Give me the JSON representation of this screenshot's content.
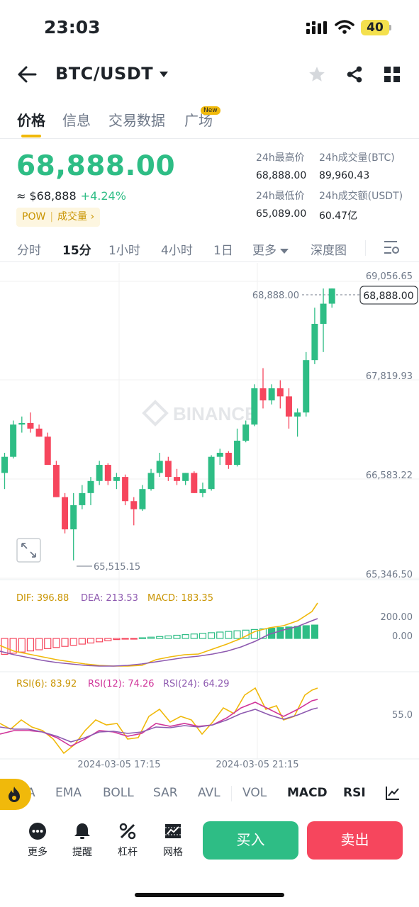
{
  "status_bar": {
    "time": "23:03",
    "battery": "40"
  },
  "header": {
    "pair": "BTC/USDT"
  },
  "tabs": [
    {
      "label": "价格",
      "active": true
    },
    {
      "label": "信息",
      "active": false
    },
    {
      "label": "交易数据",
      "active": false
    },
    {
      "label": "广场",
      "active": false,
      "badge": "New"
    }
  ],
  "price": {
    "last": "68,888.00",
    "approx": "≈ $68,888",
    "change": "+4.24%",
    "tag_left": "POW",
    "tag_right": "成交量 ›"
  },
  "stats": {
    "high_label": "24h最高价",
    "high_value": "68,888.00",
    "vol_btc_label": "24h成交量(BTC)",
    "vol_btc_value": "89,960.43",
    "low_label": "24h最低价",
    "low_value": "65,089.00",
    "vol_usdt_label": "24h成交额(USDT)",
    "vol_usdt_value": "60.47亿"
  },
  "intervals": [
    "分时",
    "15分",
    "1小时",
    "4小时",
    "1日",
    "更多",
    "深度图"
  ],
  "interval_active": "15分",
  "chart_data": {
    "type": "candlestick",
    "y_ticks": [
      "69,056.65",
      "67,819.93",
      "66,583.22",
      "65,346.50"
    ],
    "last_price_label": "68,888.00",
    "min_label": "65,515.15",
    "watermark": "BINANCE",
    "time_labels": [
      "2024-03-05 17:15",
      "2024-03-05 21:15"
    ],
    "candles": [
      {
        "o": 66600,
        "h": 66850,
        "l": 66400,
        "c": 66800
      },
      {
        "o": 66800,
        "h": 67250,
        "l": 66780,
        "c": 67200
      },
      {
        "o": 67200,
        "h": 67300,
        "l": 67100,
        "c": 67220
      },
      {
        "o": 67220,
        "h": 67350,
        "l": 67100,
        "c": 67150
      },
      {
        "o": 67150,
        "h": 67200,
        "l": 67050,
        "c": 67050
      },
      {
        "o": 67050,
        "h": 67100,
        "l": 66700,
        "c": 66700
      },
      {
        "o": 66700,
        "h": 66750,
        "l": 66300,
        "c": 66300
      },
      {
        "o": 66300,
        "h": 66350,
        "l": 65850,
        "c": 65900
      },
      {
        "o": 65900,
        "h": 66350,
        "l": 65515,
        "c": 66200
      },
      {
        "o": 66200,
        "h": 66450,
        "l": 66150,
        "c": 66350
      },
      {
        "o": 66350,
        "h": 66550,
        "l": 66200,
        "c": 66500
      },
      {
        "o": 66500,
        "h": 66750,
        "l": 66450,
        "c": 66700
      },
      {
        "o": 66700,
        "h": 66720,
        "l": 66450,
        "c": 66500
      },
      {
        "o": 66500,
        "h": 66600,
        "l": 66400,
        "c": 66550
      },
      {
        "o": 66550,
        "h": 66580,
        "l": 66200,
        "c": 66250
      },
      {
        "o": 66250,
        "h": 66300,
        "l": 65950,
        "c": 66150
      },
      {
        "o": 66150,
        "h": 66450,
        "l": 66130,
        "c": 66400
      },
      {
        "o": 66400,
        "h": 66650,
        "l": 66380,
        "c": 66600
      },
      {
        "o": 66600,
        "h": 66850,
        "l": 66550,
        "c": 66750
      },
      {
        "o": 66750,
        "h": 66800,
        "l": 66500,
        "c": 66550
      },
      {
        "o": 66550,
        "h": 66650,
        "l": 66450,
        "c": 66500
      },
      {
        "o": 66500,
        "h": 66600,
        "l": 66450,
        "c": 66600
      },
      {
        "o": 66600,
        "h": 66620,
        "l": 66350,
        "c": 66350
      },
      {
        "o": 66350,
        "h": 66480,
        "l": 66300,
        "c": 66400
      },
      {
        "o": 66400,
        "h": 66820,
        "l": 66380,
        "c": 66800
      },
      {
        "o": 66800,
        "h": 66900,
        "l": 66700,
        "c": 66850
      },
      {
        "o": 66850,
        "h": 66870,
        "l": 66650,
        "c": 66700
      },
      {
        "o": 66700,
        "h": 67150,
        "l": 66680,
        "c": 67000
      },
      {
        "o": 67000,
        "h": 67250,
        "l": 66980,
        "c": 67200
      },
      {
        "o": 67200,
        "h": 67700,
        "l": 67180,
        "c": 67650
      },
      {
        "o": 67650,
        "h": 67900,
        "l": 67400,
        "c": 67500
      },
      {
        "o": 67500,
        "h": 67700,
        "l": 67450,
        "c": 67650
      },
      {
        "o": 67650,
        "h": 67750,
        "l": 67400,
        "c": 67550
      },
      {
        "o": 67550,
        "h": 67650,
        "l": 67150,
        "c": 67300
      },
      {
        "o": 67300,
        "h": 67400,
        "l": 67050,
        "c": 67350
      },
      {
        "o": 67350,
        "h": 68100,
        "l": 67300,
        "c": 68000
      },
      {
        "o": 68000,
        "h": 68650,
        "l": 67950,
        "c": 68450
      },
      {
        "o": 68450,
        "h": 68888,
        "l": 68100,
        "c": 68700
      },
      {
        "o": 68700,
        "h": 68888,
        "l": 68650,
        "c": 68888
      }
    ],
    "macd": {
      "dif": "DIF: 396.88",
      "dea": "DEA: 213.53",
      "macd": "MACD: 183.35",
      "ticks": [
        "200.00",
        "0.00"
      ]
    },
    "rsi": {
      "rsi6": "RSI(6): 83.92",
      "rsi12": "RSI(12): 74.26",
      "rsi24": "RSI(24): 64.29",
      "tick": "55.0"
    }
  },
  "indicators": [
    "A",
    "EMA",
    "BOLL",
    "SAR",
    "AVL",
    "VOL",
    "MACD",
    "RSI"
  ],
  "bottom": {
    "more": "更多",
    "alert": "提醒",
    "leverage": "杠杆",
    "grid": "网格",
    "buy": "买入",
    "sell": "卖出"
  },
  "colors": {
    "up": "#2ebd85",
    "down": "#f6465d",
    "accent": "#f0b90b"
  }
}
